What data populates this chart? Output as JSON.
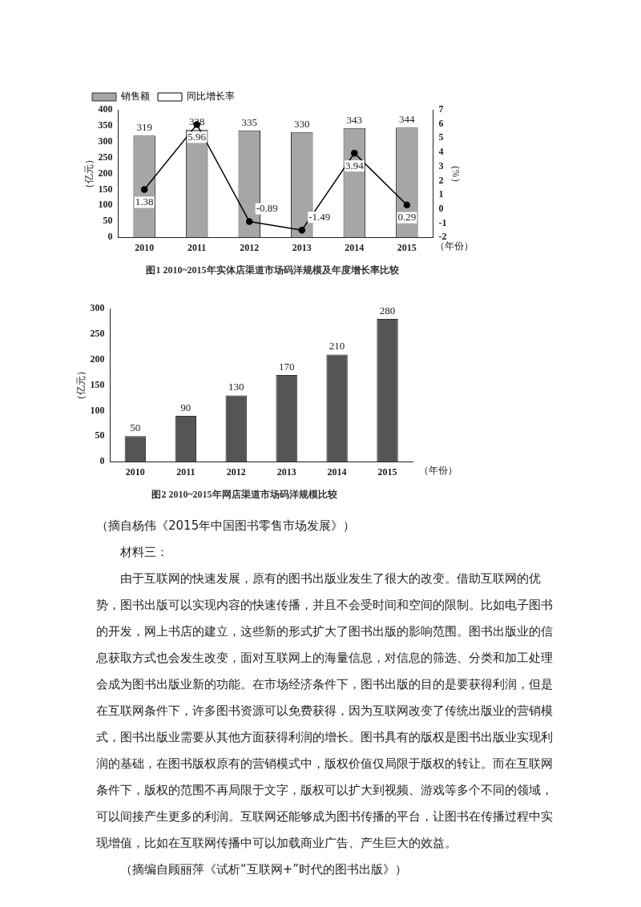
{
  "chart_data": [
    {
      "type": "bar",
      "title": "图1 2010~2015年实体店渠道市场码洋规模及年度增长率比较",
      "ylabel": "（亿元）",
      "y2label": "（%）",
      "xlabel": "（年份）",
      "categories": [
        "2010",
        "2011",
        "2012",
        "2013",
        "2014",
        "2015"
      ],
      "series": [
        {
          "name": "销售额",
          "color": "#a6a6a6",
          "values": [
            319,
            338,
            335,
            330,
            343,
            344
          ]
        },
        {
          "name": "同比增长率",
          "type": "line",
          "axis": "y2",
          "color": "#000000",
          "values": [
            1.38,
            5.96,
            -0.89,
            -1.49,
            3.94,
            0.29
          ]
        }
      ],
      "ylim": [
        0,
        400
      ],
      "yticks": [
        0,
        50,
        100,
        150,
        200,
        250,
        300,
        350,
        400
      ],
      "y2lim": [
        -2,
        7
      ],
      "y2ticks": [
        -2,
        -1,
        0,
        1,
        2,
        3,
        4,
        5,
        6,
        7
      ],
      "data_labels": true,
      "legend": "top left",
      "marker": "circle",
      "line_style": "solid"
    },
    {
      "type": "bar",
      "title": "图2 2010~2015年网店渠道市场码洋规模比较",
      "ylabel": "（亿元）",
      "xlabel": "（年份）",
      "categories": [
        "2010",
        "2011",
        "2012",
        "2013",
        "2014",
        "2015"
      ],
      "values": [
        50,
        90,
        130,
        170,
        210,
        280
      ],
      "color": "#555555",
      "ylim": [
        0,
        300
      ],
      "yticks": [
        0,
        50,
        100,
        150,
        200,
        250,
        300
      ],
      "data_labels": true,
      "annotations": [
        "（摘自杨伟《2015年中国图书零售市场发展》）",
        "材料三：",
        "由于互联网的快速发展，原有的图书出版业发生了很大的改变。借助互联网的优势，图书出版可以实现内容的快速传播，并且不会受时间和空间的限制。比如电子图书的开发，网上书店的建立，这些新的形式扩大了图书出版的影响范围。图书出版业的信息获取方式也会发生改变，面对互联网上的海量信息，对信息的筛选、分类和加工处理会成为图书出版业新的功能。在市场经济条件下，图书出版的目的是要获得利润，但是在互联网条件下，许多图书资源可以免费获得，因为互联网改变了传统出版业的营销模式，图书出版业需要从其他方面获得利润的增长。图书具有的版权是图书出版业实现利润的基础，在图书版权原有的营销模式中，版权价值仅局限于版权的转让。而在互联网条件下，版权的范围不再局限于文字，版权可以扩大到视频、游戏等多个不同的领域，可以间接产生更多的利润。互联网还能够成为图书传播的平台，让图书在传播过程中实现增值，比如在互联网传播中可以加载商业广告、产生巨大的效益。",
        "（摘编自顾丽萍《试析“互联网+”时代的图书出版》）"
      ]
    }
  ]
}
